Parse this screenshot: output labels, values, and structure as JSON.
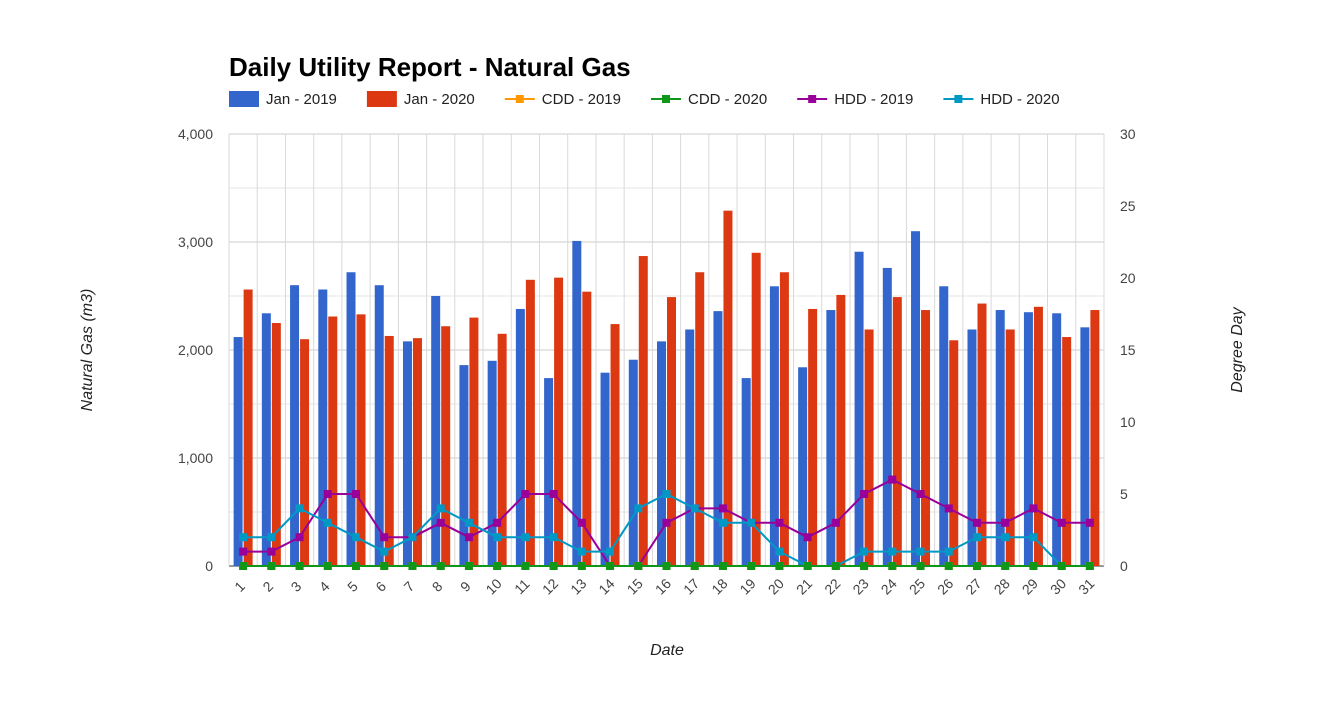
{
  "chart_data": {
    "type": "bar",
    "title": "Daily Utility Report - Natural Gas",
    "xlabel": "Date",
    "ylabel": "Natural Gas (m3)",
    "y2label": "Degree Day",
    "categories": [
      "1",
      "2",
      "3",
      "4",
      "5",
      "6",
      "7",
      "8",
      "9",
      "10",
      "11",
      "12",
      "13",
      "14",
      "15",
      "16",
      "17",
      "18",
      "19",
      "20",
      "21",
      "22",
      "23",
      "24",
      "25",
      "26",
      "27",
      "28",
      "29",
      "30",
      "31"
    ],
    "ylim": [
      0,
      4000
    ],
    "yticks": [
      "0",
      "1,000",
      "2,000",
      "3,000",
      "4,000"
    ],
    "y2lim": [
      0,
      30
    ],
    "y2ticks": [
      "0",
      "5",
      "10",
      "15",
      "20",
      "25",
      "30"
    ],
    "grid": true,
    "legend_position": "top-left",
    "series": [
      {
        "name": "Jan - 2019",
        "kind": "bar",
        "axis": "left",
        "color": "#3366cc",
        "values": [
          2120,
          2340,
          2600,
          2560,
          2720,
          2600,
          2080,
          2500,
          1860,
          1900,
          2380,
          1740,
          3010,
          1790,
          1910,
          2080,
          2190,
          2360,
          1740,
          2590,
          1840,
          2370,
          2910,
          2760,
          3100,
          2590,
          2190,
          2370,
          2350,
          2340,
          2210
        ]
      },
      {
        "name": "Jan - 2020",
        "kind": "bar",
        "axis": "left",
        "color": "#dc3912",
        "values": [
          2560,
          2250,
          2100,
          2310,
          2330,
          2130,
          2110,
          2220,
          2300,
          2150,
          2650,
          2670,
          2540,
          2240,
          2870,
          2490,
          2720,
          3290,
          2900,
          2720,
          2380,
          2510,
          2190,
          2490,
          2370,
          2090,
          2430,
          2190,
          2400,
          2120,
          2370
        ]
      },
      {
        "name": "CDD - 2019",
        "kind": "line",
        "axis": "right",
        "color": "#ff9900",
        "values": [
          0,
          0,
          0,
          0,
          0,
          0,
          0,
          0,
          0,
          0,
          0,
          0,
          0,
          0,
          0,
          0,
          0,
          0,
          0,
          0,
          0,
          0,
          0,
          0,
          0,
          0,
          0,
          0,
          0,
          0,
          0
        ]
      },
      {
        "name": "CDD - 2020",
        "kind": "line",
        "axis": "right",
        "color": "#109618",
        "values": [
          0,
          0,
          0,
          0,
          0,
          0,
          0,
          0,
          0,
          0,
          0,
          0,
          0,
          0,
          0,
          0,
          0,
          0,
          0,
          0,
          0,
          0,
          0,
          0,
          0,
          0,
          0,
          0,
          0,
          0,
          0
        ]
      },
      {
        "name": "HDD - 2019",
        "kind": "line",
        "axis": "right",
        "color": "#990099",
        "values": [
          1,
          1,
          2,
          5,
          5,
          2,
          2,
          3,
          2,
          3,
          5,
          5,
          3,
          0,
          0,
          3,
          4,
          4,
          3,
          3,
          2,
          3,
          5,
          6,
          5,
          4,
          3,
          3,
          4,
          3,
          3
        ]
      },
      {
        "name": "HDD - 2020",
        "kind": "line",
        "axis": "right",
        "color": "#0099c6",
        "values": [
          2,
          2,
          4,
          3,
          2,
          1,
          2,
          4,
          3,
          2,
          2,
          2,
          1,
          1,
          4,
          5,
          4,
          3,
          3,
          1,
          0,
          0,
          1,
          1,
          1,
          1,
          2,
          2,
          2,
          0,
          0
        ]
      }
    ]
  }
}
